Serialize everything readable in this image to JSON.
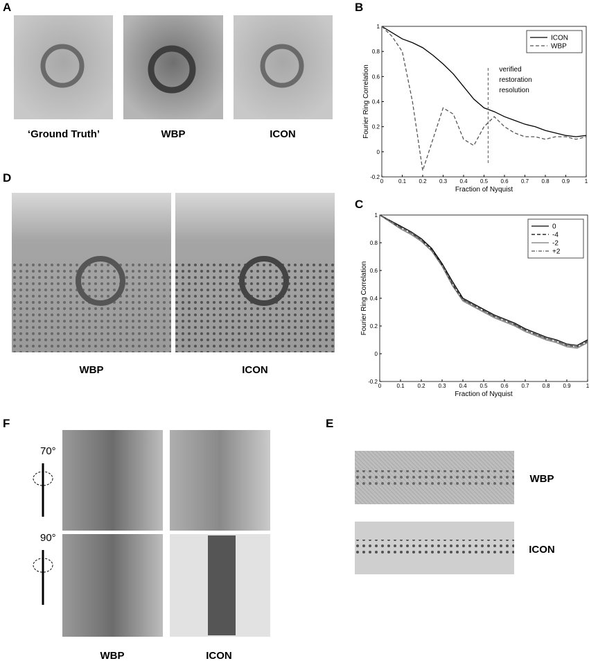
{
  "panels": {
    "A": {
      "label": "A",
      "captions": [
        "‘Ground Truth’",
        "WBP",
        "ICON"
      ]
    },
    "B": {
      "label": "B"
    },
    "C": {
      "label": "C"
    },
    "D": {
      "label": "D",
      "captions": [
        "WBP",
        "ICON"
      ]
    },
    "E": {
      "label": "E",
      "captions": [
        "WBP",
        "ICON"
      ]
    },
    "F": {
      "label": "F",
      "captions": [
        "WBP",
        "ICON"
      ],
      "angles": [
        "70°",
        "90°"
      ]
    }
  },
  "chart_data": [
    {
      "type": "line",
      "xlabel": "Fraction of Nyquist",
      "ylabel": "Fourier Ring Correlation",
      "x": [
        0,
        0.05,
        0.1,
        0.15,
        0.2,
        0.25,
        0.3,
        0.35,
        0.4,
        0.45,
        0.5,
        0.55,
        0.6,
        0.65,
        0.7,
        0.75,
        0.8,
        0.85,
        0.9,
        0.95,
        1
      ],
      "series": [
        {
          "name": "ICON",
          "color": "#000000",
          "line_style": "solid",
          "values": [
            1.0,
            0.95,
            0.9,
            0.87,
            0.83,
            0.77,
            0.7,
            0.62,
            0.52,
            0.42,
            0.35,
            0.32,
            0.28,
            0.25,
            0.22,
            0.2,
            0.17,
            0.15,
            0.13,
            0.12,
            0.13
          ]
        },
        {
          "name": "WBP",
          "color": "#555555",
          "line_style": "dashed",
          "values": [
            1.0,
            0.92,
            0.8,
            0.4,
            -0.15,
            0.1,
            0.35,
            0.3,
            0.1,
            0.05,
            0.2,
            0.28,
            0.2,
            0.15,
            0.12,
            0.12,
            0.1,
            0.12,
            0.12,
            0.1,
            0.12
          ]
        }
      ],
      "annotation": {
        "text": [
          "verified",
          "restoration",
          "resolution"
        ],
        "x": 0.52
      },
      "xlim": [
        0,
        1
      ],
      "ylim": [
        -0.2,
        1
      ],
      "xticks": [
        0,
        0.1,
        0.2,
        0.3,
        0.4,
        0.5,
        0.6,
        0.7,
        0.8,
        0.9,
        1
      ],
      "yticks": [
        -0.2,
        0,
        0.2,
        0.4,
        0.6,
        0.8,
        1
      ],
      "legend": "upper right"
    },
    {
      "type": "line",
      "xlabel": "Fraction of Nyquist",
      "ylabel": "Fourier Ring Correlation",
      "x": [
        0,
        0.05,
        0.1,
        0.15,
        0.2,
        0.25,
        0.3,
        0.35,
        0.4,
        0.45,
        0.5,
        0.55,
        0.6,
        0.65,
        0.7,
        0.75,
        0.8,
        0.85,
        0.9,
        0.95,
        1
      ],
      "series": [
        {
          "name": "0",
          "color": "#000000",
          "line_style": "solid",
          "values": [
            1.0,
            0.96,
            0.92,
            0.88,
            0.83,
            0.76,
            0.65,
            0.52,
            0.4,
            0.36,
            0.32,
            0.28,
            0.25,
            0.22,
            0.18,
            0.15,
            0.12,
            0.1,
            0.07,
            0.06,
            0.1
          ]
        },
        {
          "name": "-4",
          "color": "#000000",
          "line_style": "dashed",
          "values": [
            1.0,
            0.95,
            0.91,
            0.87,
            0.82,
            0.75,
            0.64,
            0.5,
            0.39,
            0.35,
            0.31,
            0.27,
            0.24,
            0.21,
            0.17,
            0.14,
            0.11,
            0.09,
            0.06,
            0.05,
            0.09
          ]
        },
        {
          "name": "-2",
          "color": "#777777",
          "line_style": "solid",
          "values": [
            1.0,
            0.95,
            0.9,
            0.86,
            0.81,
            0.74,
            0.63,
            0.49,
            0.38,
            0.34,
            0.3,
            0.26,
            0.23,
            0.2,
            0.16,
            0.13,
            0.1,
            0.08,
            0.05,
            0.04,
            0.08
          ]
        },
        {
          "name": "+2",
          "color": "#555555",
          "line_style": "dashdot",
          "values": [
            1.0,
            0.96,
            0.91,
            0.87,
            0.82,
            0.75,
            0.64,
            0.51,
            0.39,
            0.35,
            0.31,
            0.27,
            0.24,
            0.21,
            0.17,
            0.14,
            0.11,
            0.09,
            0.06,
            0.05,
            0.09
          ]
        }
      ],
      "xlim": [
        0,
        1
      ],
      "ylim": [
        -0.2,
        1
      ],
      "xticks": [
        0,
        0.1,
        0.2,
        0.3,
        0.4,
        0.5,
        0.6,
        0.7,
        0.8,
        0.9,
        1
      ],
      "yticks": [
        -0.2,
        0,
        0.2,
        0.4,
        0.6,
        0.8,
        1
      ],
      "legend": "upper right"
    }
  ]
}
